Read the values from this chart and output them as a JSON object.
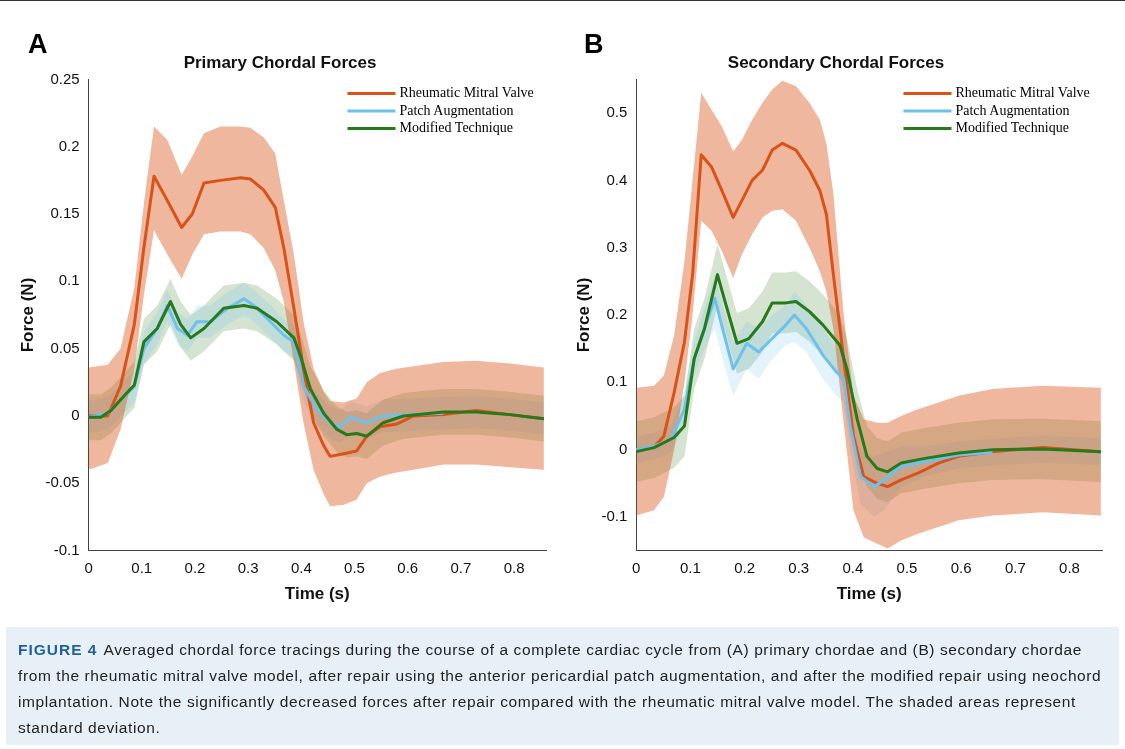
{
  "chart_data": [
    {
      "type": "line",
      "title": "Primary Chordal Forces",
      "xlabel": "Time (s)",
      "ylabel": "Force (N)",
      "annotations": [
        "A"
      ],
      "legend": "top right",
      "xlim": [
        0,
        0.86
      ],
      "xticks": [
        0,
        0.1,
        0.2,
        0.3,
        0.4,
        0.5,
        0.6,
        0.7,
        0.8
      ],
      "ylim": [
        -0.1,
        0.25
      ],
      "yticks": [
        -0.1,
        -0.05,
        0,
        0.05,
        0.1,
        0.15,
        0.2,
        0.25
      ],
      "series": [
        {
          "name": "Rheumatic Mitral Valve",
          "color": "#d95319",
          "x": [
            0,
            0.036,
            0.06,
            0.086,
            0.104,
            0.123,
            0.148,
            0.175,
            0.195,
            0.217,
            0.248,
            0.286,
            0.304,
            0.329,
            0.351,
            0.367,
            0.386,
            0.404,
            0.423,
            0.442,
            0.454,
            0.48,
            0.504,
            0.523,
            0.548,
            0.579,
            0.611,
            0.667,
            0.729,
            0.792,
            0.856
          ],
          "values": [
            0,
            0,
            0.022,
            0.068,
            0.125,
            0.178,
            0.16,
            0.14,
            0.15,
            0.173,
            0.175,
            0.177,
            0.176,
            0.168,
            0.155,
            0.125,
            0.08,
            0.035,
            -0.005,
            -0.022,
            -0.03,
            -0.028,
            -0.026,
            -0.015,
            -0.008,
            -0.006,
            0,
            0.001,
            0.004,
            0.001,
            -0.002
          ],
          "lower": [
            -0.04,
            -0.035,
            -0.01,
            0.035,
            0.09,
            0.138,
            0.12,
            0.102,
            0.12,
            0.135,
            0.137,
            0.137,
            0.135,
            0.125,
            0.108,
            0.085,
            0.04,
            -0.005,
            -0.04,
            -0.058,
            -0.067,
            -0.066,
            -0.062,
            -0.05,
            -0.045,
            -0.042,
            -0.04,
            -0.036,
            -0.036,
            -0.038,
            -0.04
          ],
          "upper": [
            0.036,
            0.038,
            0.05,
            0.095,
            0.158,
            0.215,
            0.205,
            0.179,
            0.193,
            0.21,
            0.215,
            0.215,
            0.214,
            0.207,
            0.195,
            0.16,
            0.12,
            0.07,
            0.035,
            0.018,
            0.011,
            0.01,
            0.013,
            0.025,
            0.032,
            0.035,
            0.037,
            0.04,
            0.041,
            0.039,
            0.036
          ]
        },
        {
          "name": "Patch Augmentation",
          "color": "#6ec1ec",
          "x": [
            0,
            0.036,
            0.061,
            0.086,
            0.104,
            0.129,
            0.148,
            0.167,
            0.186,
            0.204,
            0.229,
            0.261,
            0.292,
            0.311,
            0.342,
            0.367,
            0.386,
            0.404,
            0.429,
            0.454,
            0.473,
            0.492,
            0.523,
            0.554,
            0.604,
            0.667,
            0.729,
            0.792,
            0.856
          ],
          "values": [
            -0.001,
            0.002,
            0.012,
            0.022,
            0.05,
            0.065,
            0.082,
            0.065,
            0.06,
            0.07,
            0.07,
            0.08,
            0.087,
            0.082,
            0.07,
            0.06,
            0.055,
            0.022,
            0.005,
            -0.005,
            -0.008,
            -0.001,
            -0.005,
            0,
            0.001,
            0.002,
            null,
            null,
            null
          ],
          "lower": [
            -0.013,
            -0.01,
            0,
            0.01,
            0.038,
            0.053,
            0.07,
            0.053,
            0.048,
            0.058,
            0.058,
            0.068,
            0.075,
            0.07,
            0.058,
            0.048,
            0.043,
            0.01,
            -0.007,
            -0.017,
            -0.02,
            -0.013,
            -0.017,
            -0.012,
            -0.011,
            -0.01,
            -0.009,
            -0.011,
            -0.014
          ],
          "upper": [
            0.011,
            0.014,
            0.024,
            0.034,
            0.062,
            0.077,
            0.094,
            0.077,
            0.072,
            0.082,
            0.082,
            0.092,
            0.099,
            0.094,
            0.082,
            0.072,
            0.067,
            0.034,
            0.017,
            0.007,
            0.004,
            0.011,
            0.007,
            0.012,
            0.013,
            0.014,
            0.015,
            0.013,
            0.01
          ]
        },
        {
          "name": "Modified Technique",
          "color": "#267a1a",
          "x": [
            0,
            0.023,
            0.042,
            0.067,
            0.086,
            0.104,
            0.129,
            0.154,
            0.173,
            0.192,
            0.217,
            0.254,
            0.292,
            0.317,
            0.354,
            0.386,
            0.398,
            0.417,
            0.442,
            0.467,
            0.486,
            0.504,
            0.523,
            0.554,
            0.592,
            0.667,
            0.729,
            0.792,
            0.856
          ],
          "values": [
            -0.001,
            -0.001,
            0.004,
            0.015,
            0.023,
            0.055,
            0.065,
            0.085,
            0.068,
            0.058,
            0.065,
            0.08,
            0.082,
            0.08,
            0.07,
            0.058,
            0.045,
            0.02,
            0.002,
            -0.01,
            -0.014,
            -0.013,
            -0.015,
            -0.005,
            0,
            0.003,
            0.003,
            0.001,
            -0.002
          ],
          "lower": [
            -0.018,
            -0.018,
            -0.013,
            -0.002,
            0.006,
            0.038,
            0.048,
            0.068,
            0.051,
            0.041,
            0.048,
            0.063,
            0.065,
            0.063,
            0.053,
            0.041,
            0.028,
            0.003,
            -0.015,
            -0.027,
            -0.031,
            -0.03,
            -0.032,
            -0.022,
            -0.017,
            -0.014,
            -0.014,
            -0.016,
            -0.019
          ],
          "upper": [
            0.016,
            0.016,
            0.021,
            0.032,
            0.04,
            0.072,
            0.082,
            0.102,
            0.085,
            0.075,
            0.082,
            0.097,
            0.099,
            0.097,
            0.087,
            0.075,
            0.062,
            0.037,
            0.019,
            0.007,
            0.003,
            0.004,
            0.002,
            0.012,
            0.017,
            0.02,
            0.02,
            0.018,
            0.015
          ]
        }
      ]
    },
    {
      "type": "line",
      "title": "Secondary Chordal Forces",
      "xlabel": "Time (s)",
      "ylabel": "Force (N)",
      "annotations": [
        "B"
      ],
      "legend": "top right",
      "xlim": [
        0,
        0.86
      ],
      "xticks": [
        0,
        0.1,
        0.2,
        0.3,
        0.4,
        0.5,
        0.6,
        0.7,
        0.8
      ],
      "ylim": [
        -0.15,
        0.55
      ],
      "yticks": [
        -0.1,
        0,
        0.1,
        0.2,
        0.3,
        0.4,
        0.5
      ],
      "series": [
        {
          "name": "Rheumatic Mitral Valve",
          "color": "#d95319",
          "x": [
            0,
            0.033,
            0.051,
            0.07,
            0.089,
            0.104,
            0.12,
            0.139,
            0.158,
            0.179,
            0.195,
            0.214,
            0.233,
            0.251,
            0.27,
            0.295,
            0.32,
            0.339,
            0.351,
            0.364,
            0.383,
            0.401,
            0.42,
            0.445,
            0.464,
            0.489,
            0.52,
            0.558,
            0.595,
            0.658,
            0.751,
            0.858
          ],
          "values": [
            0,
            0.004,
            0.02,
            0.085,
            0.16,
            0.26,
            0.438,
            0.42,
            0.385,
            0.345,
            0.37,
            0.4,
            0.415,
            0.445,
            0.455,
            0.445,
            0.415,
            0.385,
            0.35,
            0.26,
            0.135,
            0.02,
            -0.04,
            -0.05,
            -0.055,
            -0.045,
            -0.035,
            -0.02,
            -0.01,
            -0.003,
            0.003,
            -0.003
          ],
          "lower": [
            -0.098,
            -0.09,
            -0.07,
            0,
            0.1,
            0.2,
            0.34,
            0.325,
            0.295,
            0.255,
            0.29,
            0.32,
            0.345,
            0.355,
            0.357,
            0.34,
            0.3,
            0.265,
            0.235,
            0.18,
            0.04,
            -0.09,
            -0.13,
            -0.14,
            -0.147,
            -0.135,
            -0.125,
            -0.115,
            -0.105,
            -0.098,
            -0.093,
            -0.098
          ],
          "upper": [
            0.092,
            0.095,
            0.11,
            0.17,
            0.28,
            0.4,
            0.53,
            0.505,
            0.48,
            0.443,
            0.46,
            0.49,
            0.515,
            0.535,
            0.548,
            0.54,
            0.515,
            0.49,
            0.455,
            0.38,
            0.2,
            0.08,
            0.045,
            0.04,
            0.04,
            0.05,
            0.06,
            0.07,
            0.08,
            0.09,
            0.095,
            0.092
          ]
        },
        {
          "name": "Patch Augmentation",
          "color": "#6ec1ec",
          "x": [
            0,
            0.033,
            0.064,
            0.089,
            0.107,
            0.126,
            0.145,
            0.161,
            0.179,
            0.204,
            0.226,
            0.251,
            0.276,
            0.292,
            0.314,
            0.345,
            0.37,
            0.383,
            0.395,
            0.414,
            0.439,
            0.458,
            0.489,
            0.533,
            0.595,
            0.658,
            0.751,
            0.858
          ],
          "values": [
            0,
            0.005,
            0.015,
            0.06,
            0.135,
            0.18,
            0.225,
            0.175,
            0.12,
            0.158,
            0.145,
            0.165,
            0.185,
            0.2,
            0.18,
            0.14,
            0.115,
            0.105,
            0.035,
            -0.04,
            -0.055,
            -0.045,
            -0.025,
            -0.018,
            -0.008,
            -0.004,
            null,
            null
          ],
          "lower": [
            -0.02,
            -0.015,
            -0.005,
            0.035,
            0.11,
            0.15,
            0.18,
            0.13,
            0.08,
            0.12,
            0.105,
            0.135,
            0.155,
            0.16,
            0.145,
            0.105,
            0.08,
            0.07,
            0,
            -0.08,
            -0.1,
            -0.09,
            -0.055,
            -0.04,
            -0.028,
            -0.024,
            -0.019,
            -0.023
          ],
          "upper": [
            0.02,
            0.025,
            0.035,
            0.085,
            0.16,
            0.21,
            0.26,
            0.21,
            0.16,
            0.19,
            0.18,
            0.2,
            0.215,
            0.235,
            0.215,
            0.18,
            0.15,
            0.14,
            0.07,
            0,
            -0.01,
            -0.005,
            0.005,
            0.005,
            0.012,
            0.016,
            0.021,
            0.017
          ]
        },
        {
          "name": "Modified Technique",
          "color": "#267a1a",
          "x": [
            0,
            0.033,
            0.07,
            0.089,
            0.107,
            0.126,
            0.15,
            0.164,
            0.186,
            0.208,
            0.233,
            0.251,
            0.276,
            0.295,
            0.32,
            0.345,
            0.376,
            0.389,
            0.408,
            0.426,
            0.445,
            0.464,
            0.489,
            0.533,
            0.595,
            0.658,
            0.751,
            0.858
          ],
          "values": [
            -0.003,
            0.003,
            0.018,
            0.035,
            0.135,
            0.18,
            0.26,
            0.22,
            0.158,
            0.165,
            0.19,
            0.218,
            0.218,
            0.22,
            0.205,
            0.185,
            0.155,
            0.12,
            0.045,
            -0.01,
            -0.028,
            -0.033,
            -0.02,
            -0.013,
            -0.005,
            0,
            0.001,
            -0.003
          ],
          "lower": [
            -0.048,
            -0.042,
            -0.027,
            -0.01,
            0.09,
            0.135,
            0.215,
            0.175,
            0.113,
            0.12,
            0.145,
            0.173,
            0.173,
            0.175,
            0.16,
            0.14,
            0.11,
            0.075,
            0,
            -0.055,
            -0.073,
            -0.078,
            -0.065,
            -0.058,
            -0.05,
            -0.045,
            -0.044,
            -0.048
          ],
          "upper": [
            0.042,
            0.048,
            0.063,
            0.08,
            0.18,
            0.225,
            0.305,
            0.265,
            0.203,
            0.21,
            0.235,
            0.263,
            0.263,
            0.265,
            0.25,
            0.23,
            0.2,
            0.165,
            0.09,
            0.035,
            0.017,
            0.012,
            0.025,
            0.032,
            0.04,
            0.045,
            0.046,
            0.042
          ]
        }
      ]
    },
    {
      "type": "other",
      "title": "FIGURE 4",
      "annotations": [
        "Averaged chordal force tracings during the course of a complete cardiac cycle from (A) primary chordae and (B) secondary chordae from the rheumatic mitral valve model, after repair using the anterior pericardial patch augmentation, and after the modified repair using neochord implantation. Note the significantly decreased forces after repair compared with the rheumatic mitral valve model. The shaded areas represent standard deviation."
      ]
    }
  ]
}
